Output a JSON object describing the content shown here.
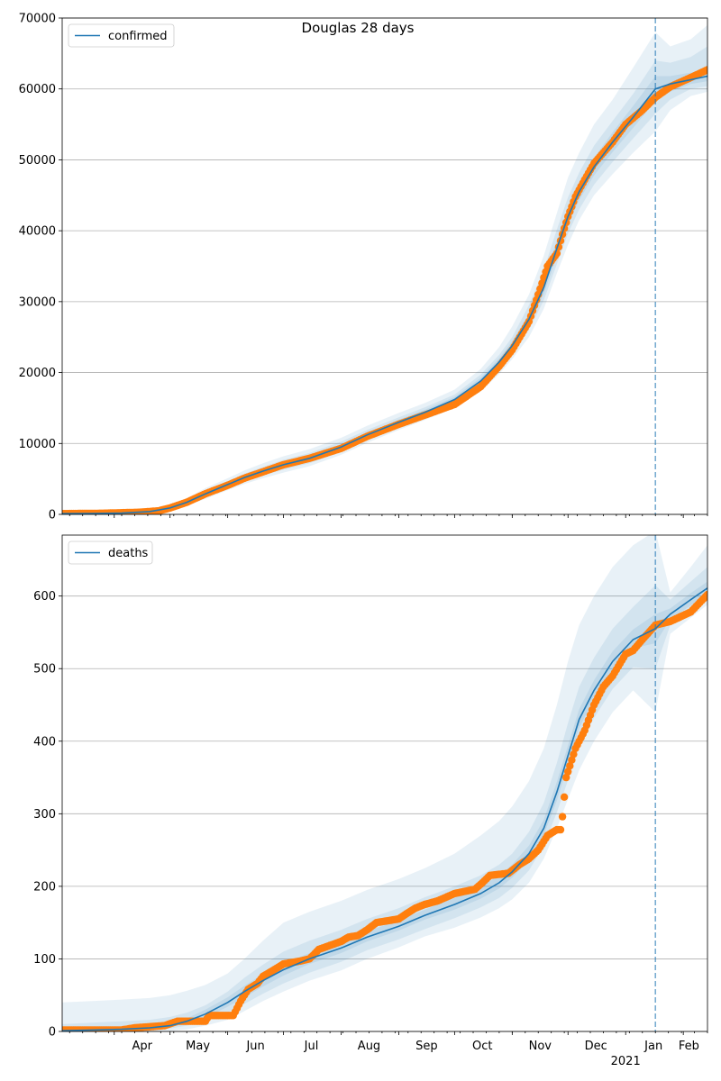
{
  "figure": {
    "title": "Douglas 28 days",
    "colors": {
      "model_line": "#1f77b4",
      "band": "#1f77b4",
      "observed": "#ff7f0e",
      "cutoff_line": "#1f77b4",
      "grid": "#b0b0b0"
    }
  },
  "chart_data": [
    {
      "type": "line",
      "legend": "confirmed",
      "legend_position": "top-left",
      "grid": "y",
      "ylim": [
        0,
        70000
      ],
      "yticks": [
        0,
        10000,
        20000,
        30000,
        40000,
        50000,
        60000,
        70000
      ],
      "xlim": [
        "2020-03-04",
        "2021-02-14"
      ],
      "forecast_start": "2021-01-17",
      "model": {
        "dates": [
          "2020-03-04",
          "2020-03-20",
          "2020-04-05",
          "2020-04-20",
          "2020-05-01",
          "2020-05-10",
          "2020-05-20",
          "2020-06-01",
          "2020-06-10",
          "2020-06-20",
          "2020-07-01",
          "2020-07-15",
          "2020-08-01",
          "2020-08-15",
          "2020-09-01",
          "2020-09-15",
          "2020-10-01",
          "2020-10-15",
          "2020-10-25",
          "2020-11-01",
          "2020-11-10",
          "2020-11-18",
          "2020-11-25",
          "2020-12-01",
          "2020-12-07",
          "2020-12-15",
          "2020-12-25",
          "2021-01-05",
          "2021-01-17",
          "2021-01-25",
          "2021-02-05",
          "2021-02-14"
        ],
        "values": [
          100,
          120,
          180,
          400,
          900,
          1700,
          2900,
          4200,
          5200,
          6100,
          7000,
          7900,
          9500,
          11200,
          13000,
          14400,
          16200,
          18800,
          21500,
          23800,
          27500,
          32000,
          37500,
          42000,
          45500,
          49000,
          52500,
          56000,
          60000,
          60700,
          61300,
          61800
        ],
        "bands": [
          {
            "lower": [
              50,
              70,
              100,
              250,
              600,
              1200,
              2200,
              3400,
              4300,
              5100,
              5900,
              6800,
              8400,
              10100,
              11900,
              13300,
              15000,
              17300,
              19800,
              21900,
              25000,
              29000,
              34000,
              38000,
              41500,
              45000,
              48000,
              51000,
              54000,
              57000,
              59000,
              59600
            ],
            "upper": [
              200,
              250,
              350,
              650,
              1300,
              2300,
              3700,
              5100,
              6200,
              7200,
              8200,
              9200,
              10800,
              12500,
              14300,
              15700,
              17600,
              20500,
              23600,
              26500,
              31000,
              36500,
              42500,
              47500,
              51000,
              55000,
              58500,
              63000,
              68000,
              66000,
              67000,
              69000
            ]
          },
          {
            "lower": [
              70,
              90,
              130,
              300,
              700,
              1400,
              2500,
              3700,
              4700,
              5500,
              6300,
              7200,
              8800,
              10500,
              12300,
              13700,
              15500,
              17900,
              20500,
              22700,
              26000,
              30200,
              35300,
              39600,
              43000,
              46500,
              49700,
              53000,
              56500,
              58500,
              60000,
              60400
            ],
            "upper": [
              150,
              190,
              270,
              550,
              1150,
              2050,
              3350,
              4700,
              5750,
              6700,
              7700,
              8650,
              10250,
              11900,
              13700,
              15100,
              16900,
              19700,
              22500,
              25000,
              29500,
              34500,
              40200,
              44700,
              48200,
              52000,
              55500,
              59300,
              64000,
              63700,
              64500,
              66000
            ]
          },
          {
            "lower": [
              85,
              105,
              155,
              350,
              800,
              1550,
              2700,
              3950,
              4950,
              5800,
              6650,
              7550,
              9150,
              10850,
              12650,
              14050,
              15850,
              18350,
              21000,
              23250,
              26800,
              31100,
              36400,
              40800,
              44300,
              47800,
              51100,
              54500,
              58300,
              59600,
              60700,
              61100
            ],
            "upper": [
              120,
              145,
              215,
              470,
              1020,
              1870,
              3120,
              4470,
              5470,
              6400,
              7350,
              8300,
              9900,
              11550,
              13350,
              14750,
              16550,
              19250,
              22000,
              24400,
              28300,
              33000,
              38700,
              43300,
              46800,
              50300,
              53900,
              57600,
              61800,
              61800,
              62300,
              62800
            ]
          }
        ]
      },
      "observed_keyframes": {
        "dates": [
          "2020-03-04",
          "2020-03-25",
          "2020-04-15",
          "2020-04-25",
          "2020-05-01",
          "2020-05-10",
          "2020-05-20",
          "2020-06-01",
          "2020-06-10",
          "2020-06-20",
          "2020-07-01",
          "2020-07-15",
          "2020-08-01",
          "2020-08-15",
          "2020-09-01",
          "2020-09-15",
          "2020-10-01",
          "2020-10-15",
          "2020-10-25",
          "2020-11-01",
          "2020-11-10",
          "2020-11-15",
          "2020-11-20",
          "2020-11-25",
          "2020-11-28",
          "2020-12-01",
          "2020-12-05",
          "2020-12-10",
          "2020-12-15",
          "2020-12-20",
          "2020-12-25",
          "2021-01-01",
          "2021-01-10",
          "2021-01-17",
          "2021-01-25",
          "2021-02-05",
          "2021-02-14"
        ],
        "values": [
          100,
          150,
          300,
          500,
          900,
          1700,
          2900,
          4100,
          5100,
          6000,
          7000,
          7900,
          9300,
          11000,
          12700,
          14000,
          15500,
          18000,
          20900,
          23200,
          27200,
          31000,
          35000,
          36800,
          39500,
          42000,
          44800,
          47200,
          49500,
          51000,
          52500,
          55000,
          57000,
          58800,
          60300,
          61600,
          62700
        ]
      }
    },
    {
      "type": "line",
      "legend": "deaths",
      "legend_position": "top-left",
      "grid": "y",
      "ylim": [
        0,
        684
      ],
      "yticks": [
        0,
        100,
        200,
        300,
        400,
        500,
        600
      ],
      "xlim": [
        "2020-03-04",
        "2021-02-14"
      ],
      "xticks": [
        "Apr",
        "May",
        "Jun",
        "Jul",
        "Aug",
        "Sep",
        "Oct",
        "Nov",
        "Dec",
        "Jan",
        "Feb"
      ],
      "xtick_year": "2021",
      "forecast_start": "2021-01-17",
      "model": {
        "dates": [
          "2020-03-04",
          "2020-03-20",
          "2020-04-05",
          "2020-04-20",
          "2020-05-01",
          "2020-05-10",
          "2020-05-20",
          "2020-06-01",
          "2020-06-10",
          "2020-06-20",
          "2020-07-01",
          "2020-07-15",
          "2020-08-01",
          "2020-08-15",
          "2020-09-01",
          "2020-09-15",
          "2020-10-01",
          "2020-10-15",
          "2020-10-25",
          "2020-11-01",
          "2020-11-10",
          "2020-11-18",
          "2020-11-25",
          "2020-12-01",
          "2020-12-07",
          "2020-12-15",
          "2020-12-25",
          "2021-01-05",
          "2021-01-17",
          "2021-01-25",
          "2021-02-05",
          "2021-02-14"
        ],
        "values": [
          1,
          2,
          3,
          5,
          8,
          14,
          24,
          40,
          55,
          70,
          85,
          100,
          115,
          130,
          145,
          160,
          175,
          190,
          205,
          220,
          245,
          280,
          330,
          380,
          430,
          470,
          510,
          540,
          555,
          575,
          595,
          611
        ],
        "bands": [
          {
            "lower": [
              0,
              0,
              0,
              0,
              1,
              3,
              8,
              16,
              28,
              42,
              55,
              70,
              84,
              100,
              116,
              131,
              143,
              157,
              170,
              182,
              205,
              238,
              280,
              320,
              360,
              400,
              440,
              470,
              440,
              548,
              570,
              588
            ],
            "upper": [
              40,
              42,
              44,
              46,
              50,
              56,
              64,
              80,
              100,
              125,
              150,
              165,
              180,
              195,
              210,
              225,
              245,
              270,
              290,
              310,
              345,
              390,
              450,
              510,
              560,
              600,
              640,
              670,
              690,
              605,
              640,
              670
            ]
          },
          {
            "lower": [
              0,
              0,
              1,
              2,
              4,
              8,
              14,
              26,
              38,
              52,
              66,
              81,
              96,
              112,
              127,
              141,
              156,
              171,
              184,
              198,
              222,
              256,
              302,
              346,
              393,
              432,
              472,
              502,
              500,
              560,
              580,
              599
            ],
            "upper": [
              10,
              12,
              14,
              16,
              20,
              26,
              36,
              55,
              74,
              92,
              110,
              125,
              140,
              155,
              170,
              185,
              200,
              215,
              230,
              245,
              275,
              315,
              370,
              425,
              475,
              515,
              555,
              585,
              615,
              595,
              620,
              640
            ]
          },
          {
            "lower": [
              0,
              1,
              2,
              3,
              6,
              11,
              19,
              34,
              47,
              62,
              77,
              93,
              108,
              124,
              139,
              154,
              168,
              183,
              197,
              212,
              236,
              271,
              318,
              368,
              418,
              458,
              498,
              528,
              535,
              568,
              587,
              604
            ],
            "upper": [
              3,
              4,
              5,
              8,
              12,
              18,
              30,
              47,
              63,
              79,
              94,
              108,
              123,
              138,
              153,
              168,
              184,
              200,
              215,
              230,
              256,
              292,
              344,
              394,
              444,
              484,
              524,
              554,
              575,
              583,
              604,
              620
            ]
          }
        ]
      },
      "observed_keyframes": {
        "dates": [
          "2020-03-04",
          "2020-04-05",
          "2020-04-12",
          "2020-04-28",
          "2020-05-05",
          "2020-05-20",
          "2020-05-22",
          "2020-06-04",
          "2020-06-08",
          "2020-06-12",
          "2020-06-17",
          "2020-06-20",
          "2020-06-26",
          "2020-07-01",
          "2020-07-10",
          "2020-07-15",
          "2020-07-20",
          "2020-08-01",
          "2020-08-05",
          "2020-08-10",
          "2020-08-15",
          "2020-08-20",
          "2020-09-01",
          "2020-09-05",
          "2020-09-10",
          "2020-09-15",
          "2020-09-22",
          "2020-10-01",
          "2020-10-12",
          "2020-10-16",
          "2020-10-20",
          "2020-10-30",
          "2020-11-05",
          "2020-11-10",
          "2020-11-15",
          "2020-11-20",
          "2020-11-25",
          "2020-11-27",
          "2020-11-28",
          "2020-11-30",
          "2020-12-05",
          "2020-12-10",
          "2020-12-15",
          "2020-12-20",
          "2020-12-25",
          "2021-01-01",
          "2021-01-05",
          "2021-01-10",
          "2021-01-17",
          "2021-01-25",
          "2021-02-05",
          "2021-02-14"
        ],
        "values": [
          2,
          2,
          5,
          8,
          14,
          14,
          22,
          22,
          42,
          58,
          66,
          76,
          85,
          93,
          97,
          100,
          113,
          124,
          130,
          132,
          140,
          150,
          155,
          162,
          170,
          175,
          180,
          190,
          196,
          205,
          215,
          218,
          230,
          238,
          250,
          270,
          278,
          278,
          296,
          350,
          390,
          415,
          450,
          475,
          490,
          520,
          525,
          540,
          560,
          565,
          578,
          602
        ]
      }
    }
  ]
}
